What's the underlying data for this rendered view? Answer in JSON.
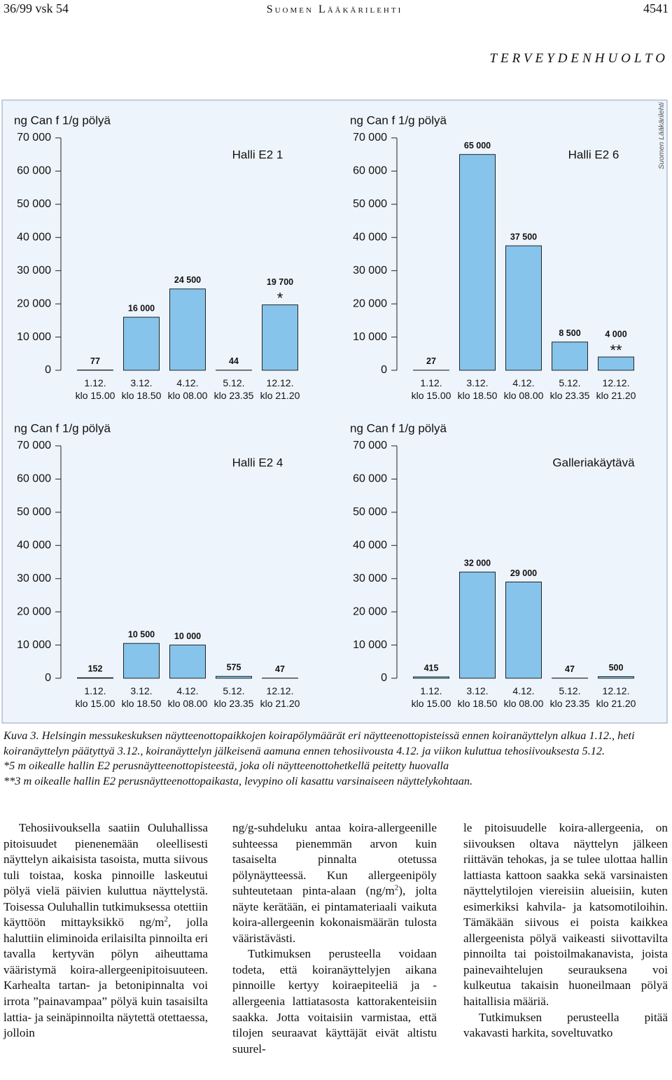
{
  "header": {
    "left": "36/99 vsk 54",
    "center": "Suomen Lääkärilehti",
    "right": "4541"
  },
  "section": "TERVEYDENHUOLTO",
  "side_label": "Suomen Lääkärilehti",
  "chart_data": [
    {
      "type": "bar",
      "title": "Halli E2 1",
      "ylabel": "ng Can f 1/g pölyä",
      "categories": [
        "1.12.\nklo 15.00",
        "3.12.\nklo 18.50",
        "4.12.\nklo 08.00",
        "5.12.\nklo 23.35",
        "12.12.\nklo 21.20"
      ],
      "values": [
        77,
        16000,
        24500,
        44,
        19700
      ],
      "value_labels": [
        "77",
        "16 000",
        "24 500",
        "44",
        "19 700"
      ],
      "value_notes": [
        null,
        null,
        null,
        null,
        "*"
      ],
      "color": "#86c4eb",
      "ylim": [
        0,
        70000
      ],
      "yticks": [
        0,
        {
          "value": 10000,
          "label": "10 000"
        },
        {
          "value": 20000,
          "label": "20 000"
        },
        {
          "value": 30000,
          "label": "30 000"
        },
        {
          "value": 40000,
          "label": "40 000"
        },
        {
          "value": 50000,
          "label": "50 000"
        },
        {
          "value": 60000,
          "label": "60 000"
        },
        {
          "value": 70000,
          "label": "70 000"
        }
      ]
    },
    {
      "type": "bar",
      "title": "Halli E2 6",
      "ylabel": "ng Can f 1/g pölyä",
      "categories": [
        "1.12.\nklo 15.00",
        "3.12.\nklo 18.50",
        "4.12.\nklo 08.00",
        "5.12.\nklo 23.35",
        "12.12.\nklo 21.20"
      ],
      "values": [
        27,
        65000,
        37500,
        8500,
        4000
      ],
      "value_labels": [
        "27",
        "65 000",
        "37 500",
        "8 500",
        "4 000"
      ],
      "value_notes": [
        null,
        null,
        null,
        null,
        "**"
      ],
      "color": "#86c4eb",
      "ylim": [
        0,
        70000
      ],
      "yticks": [
        0,
        {
          "value": 10000,
          "label": "10 000"
        },
        {
          "value": 20000,
          "label": "20 000"
        },
        {
          "value": 30000,
          "label": "30 000"
        },
        {
          "value": 40000,
          "label": "40 000"
        },
        {
          "value": 50000,
          "label": "50 000"
        },
        {
          "value": 60000,
          "label": "60 000"
        },
        {
          "value": 70000,
          "label": "70 000"
        }
      ]
    },
    {
      "type": "bar",
      "title": "Halli E2 4",
      "ylabel": "ng Can f 1/g pölyä",
      "categories": [
        "1.12.\nklo 15.00",
        "3.12.\nklo 18.50",
        "4.12.\nklo 08.00",
        "5.12.\nklo 23.35",
        "12.12.\nklo 21.20"
      ],
      "values": [
        152,
        10500,
        10000,
        575,
        47
      ],
      "value_labels": [
        "152",
        "10 500",
        "10 000",
        "575",
        "47"
      ],
      "color": "#86c4eb",
      "ylim": [
        0,
        70000
      ],
      "yticks": [
        0,
        {
          "value": 10000,
          "label": "10 000"
        },
        {
          "value": 20000,
          "label": "20 000"
        },
        {
          "value": 30000,
          "label": "30 000"
        },
        {
          "value": 40000,
          "label": "40 000"
        },
        {
          "value": 50000,
          "label": "50 000"
        },
        {
          "value": 60000,
          "label": "60 000"
        },
        {
          "value": 70000,
          "label": "70 000"
        }
      ]
    },
    {
      "type": "bar",
      "title": "Galleriakäytävä",
      "ylabel": "ng Can f 1/g pölyä",
      "categories": [
        "1.12.\nklo 15.00",
        "3.12.\nklo 18.50",
        "4.12.\nklo 08.00",
        "5.12.\nklo 23.35",
        "12.12.\nklo 21.20"
      ],
      "values": [
        415,
        32000,
        29000,
        47,
        500
      ],
      "value_labels": [
        "415",
        "32 000",
        "29 000",
        "47",
        "500"
      ],
      "color": "#86c4eb",
      "ylim": [
        0,
        70000
      ],
      "yticks": [
        0,
        {
          "value": 10000,
          "label": "10 000"
        },
        {
          "value": 20000,
          "label": "20 000"
        },
        {
          "value": 30000,
          "label": "30 000"
        },
        {
          "value": 40000,
          "label": "40 000"
        },
        {
          "value": 50000,
          "label": "50 000"
        },
        {
          "value": 60000,
          "label": "60 000"
        },
        {
          "value": 70000,
          "label": "70 000"
        }
      ]
    }
  ],
  "caption": [
    "Kuva 3. Helsingin messukeskuksen näytteenottopaikkojen koirapölymäärät eri näytteenottopisteissä ennen koiranäyttelyn alkua 1.12., heti koiranäyttelyn päätyttyä 3.12., koiranäyttelyn jälkeisenä aamuna ennen tehosiivousta 4.12. ja viikon kuluttua tehosiivouksesta 5.12.",
    "*5 m oikealle hallin E2 perusnäytteenottopisteestä, joka oli näytteenottohetkellä peitetty huovalla",
    "**3 m oikealle hallin E2 perusnäytteenottopaikasta, levypino oli kasattu varsinaiseen näyttelykohtaan."
  ],
  "body": {
    "columns": [
      [
        [
          {
            "text": "Tehosiivouksella saatiin Ouluhallissa pitoisuudet pienenemään oleellisesti näyttelyn aikaisista tasoista, mutta siivous tuli toistaa, koska pinnoille laskeutui pölyä vielä päivien kuluttua näyttelystä. Toisessa Ouluhallin tutkimuksessa otettiin käyttöön mittayksikkö ng/m"
          },
          {
            "sup": "2"
          },
          {
            "text": ", jolla haluttiin eliminoida erilaisilta pinnoilta eri tavalla kertyvän pölyn aiheuttama vääristymä koira-allergeenipitoisuuteen. Karhealta tartan- ja betonipinnalta voi irrota ”painavampaa” pölyä kuin tasaisilta lattia- ja seinäpinnoilta näytettä otettaessa, jolloin"
          }
        ]
      ],
      [
        [
          {
            "text": "ng/g-suhdeluku antaa koira-allergeenille suhteessa pienemmän arvon kuin tasaiselta pinnalta otetussa pölynäytteessä. Kun allergeenipöly suhteutetaan pinta-alaan (ng/m"
          },
          {
            "sup": "2"
          },
          {
            "text": "), jolta näyte kerätään, ei pintamateriaali vaikuta koira-allergeenin kokonaismäärän tulosta vääristävästi."
          }
        ],
        [
          {
            "text": "Tutkimuksen perusteella voidaan todeta, että koiranäyttelyjen aikana pinnoille kertyy koiraepiteeliä ja -allergeenia lattiatasosta kattorakenteisiin saakka. Jotta voitaisiin varmistaa, että tilojen seuraavat käyttäjät eivät altistu suurel-"
          }
        ]
      ],
      [
        [
          {
            "text": "le pitoisuudelle koira-allergeenia, on siivouksen oltava näyttelyn jälkeen riittävän tehokas, ja se tulee ulottaa hallin lattiasta kattoon saakka sekä varsinaisten näyttelytilojen viereisiin alueisiin, kuten esimerkiksi kahvila- ja katsomotiloihin. Tämäkään siivous ei poista kaikkea allergeenista pölyä vaikeasti siivottavilta pinnoilta tai poistoilmakanavista, joista painevaihtelujen seurauksena voi kulkeutua takaisin huoneilmaan pölyä haitallisia määriä."
          }
        ],
        [
          {
            "text": "Tutkimuksen perusteella pitää vakavasti harkita, soveltuvatko"
          }
        ]
      ]
    ]
  }
}
